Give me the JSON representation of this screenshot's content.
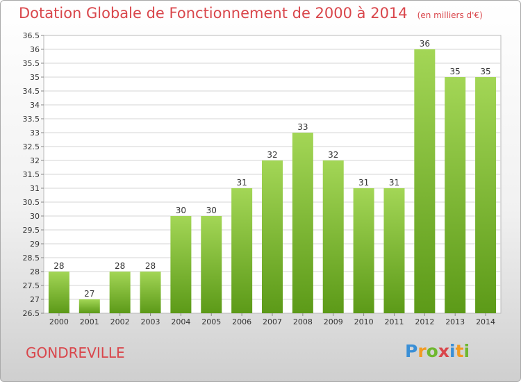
{
  "title": "Dotation Globale de Fonctionnement de 2000 à 2014",
  "subtitle": "(en milliers d'€)",
  "commune": "GONDREVILLE",
  "logo": {
    "text": "Proxiti",
    "letters": [
      "P",
      "r",
      "o",
      "x",
      "i",
      "t",
      "i"
    ],
    "colors": [
      "#3a8fd6",
      "#f29b22",
      "#6fb82f",
      "#d9464b",
      "#3a8fd6",
      "#f29b22",
      "#6fb82f"
    ]
  },
  "colors": {
    "title": "#d9464b",
    "bar_top": "#a3d656",
    "bar_bottom": "#5c9a18",
    "grid": "#d6d6d6"
  },
  "chart_data": {
    "type": "bar",
    "title": "Dotation Globale de Fonctionnement de 2000 à 2014",
    "subtitle": "(en milliers d'€)",
    "categories": [
      "2000",
      "2001",
      "2002",
      "2003",
      "2004",
      "2005",
      "2006",
      "2007",
      "2008",
      "2009",
      "2010",
      "2011",
      "2012",
      "2013",
      "2014"
    ],
    "values": [
      28,
      27,
      28,
      28,
      30,
      30,
      31,
      32,
      33,
      32,
      31,
      31,
      36,
      35,
      35
    ],
    "value_labels": [
      "28",
      "27",
      "28",
      "28",
      "30",
      "30",
      "31",
      "32",
      "33",
      "32",
      "31",
      "31",
      "36",
      "35",
      "35"
    ],
    "ylim": [
      26.5,
      36.5
    ],
    "yticks": [
      "26.5",
      "27",
      "27.5",
      "28",
      "28.5",
      "29",
      "29.5",
      "30",
      "30.5",
      "31",
      "31.5",
      "32",
      "32.5",
      "33",
      "33.5",
      "34",
      "34.5",
      "35",
      "35.5",
      "36",
      "36.5"
    ],
    "xlabel": "",
    "ylabel": "",
    "grid": true
  }
}
